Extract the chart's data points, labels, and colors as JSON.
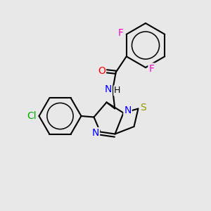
{
  "bg_color": "#e8e8e8",
  "bond_color": "#000000",
  "atom_colors": {
    "F": "#ff00cc",
    "Cl": "#00aa00",
    "O": "#ff0000",
    "N": "#0000ff",
    "S": "#999900",
    "H": "#000000"
  },
  "fig_size": [
    3.0,
    3.0
  ],
  "dpi": 100,
  "xlim": [
    0,
    10
  ],
  "ylim": [
    0,
    10
  ]
}
